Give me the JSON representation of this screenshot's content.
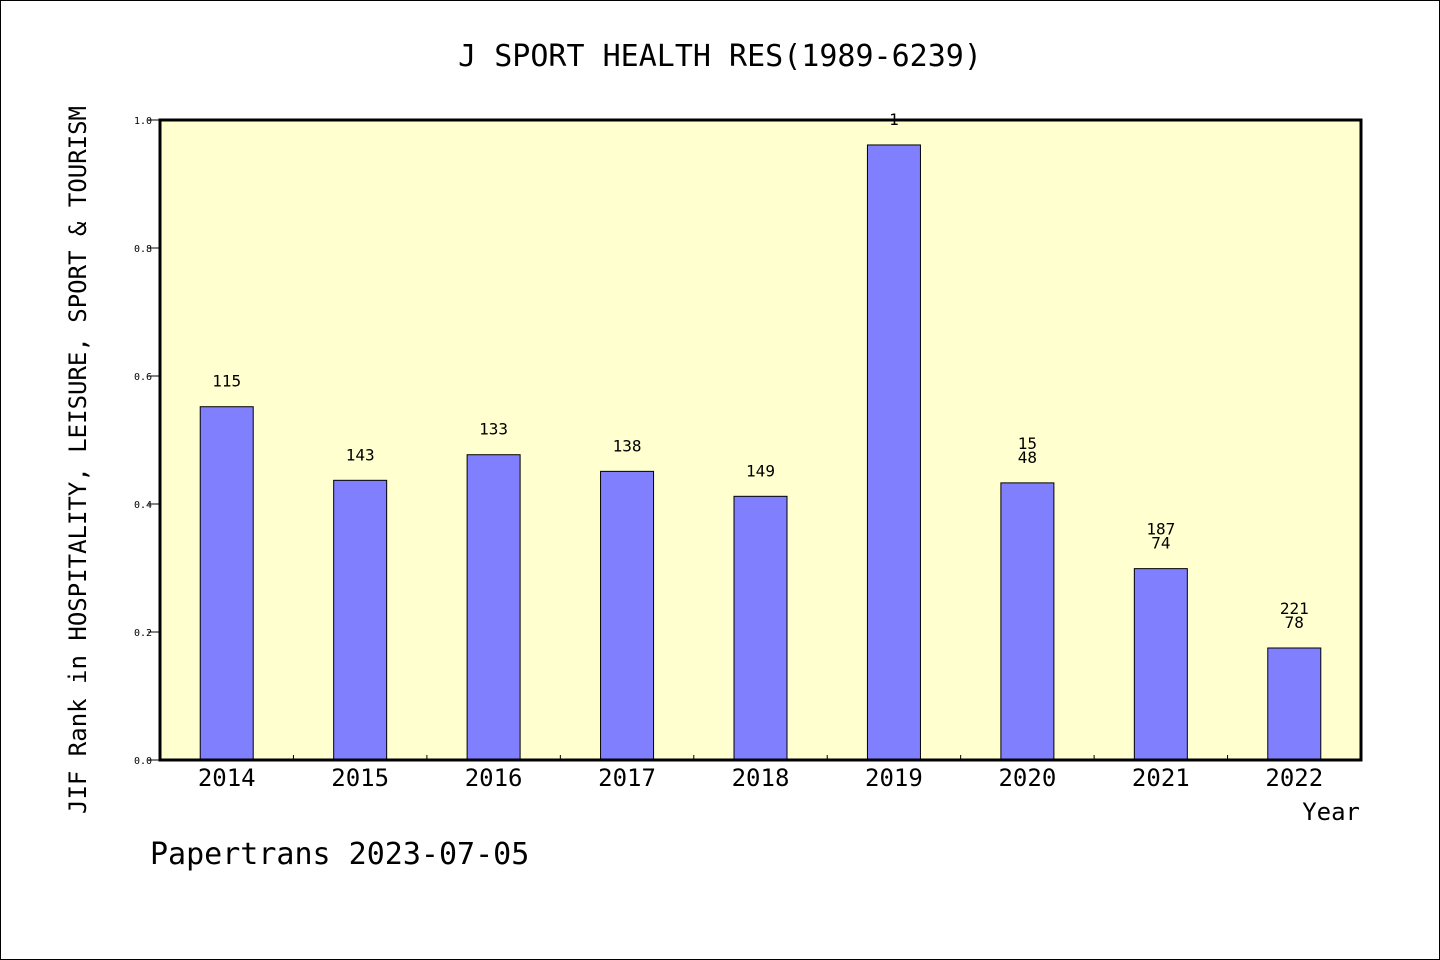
{
  "chart_data": {
    "type": "bar",
    "title": "J SPORT HEALTH RES(1989-6239)",
    "xlabel": "Year",
    "ylabel": "JIF Rank in HOSPITALITY, LEISURE, SPORT & TOURISM",
    "ylim": [
      0,
      1.0
    ],
    "yticks": [
      "0.0",
      "0.2",
      "0.4",
      "0.6",
      "0.8",
      "1.0"
    ],
    "categories": [
      "2014",
      "2015",
      "2016",
      "2017",
      "2018",
      "2019",
      "2020",
      "2021",
      "2022"
    ],
    "values": [
      0.552,
      0.437,
      0.477,
      0.451,
      0.412,
      0.961,
      0.433,
      0.299,
      0.175
    ],
    "labels": [
      [
        "115"
      ],
      [
        "143"
      ],
      [
        "133"
      ],
      [
        "138"
      ],
      [
        "149"
      ],
      [
        "1"
      ],
      [
        "15",
        "48"
      ],
      [
        "187",
        "74"
      ],
      [
        "221",
        "78"
      ]
    ],
    "grid": false,
    "colors": {
      "plot_bg": "#ffffd0",
      "bar": "#8080ff",
      "axis": "#000000"
    }
  },
  "footer": "Papertrans 2023-07-05"
}
